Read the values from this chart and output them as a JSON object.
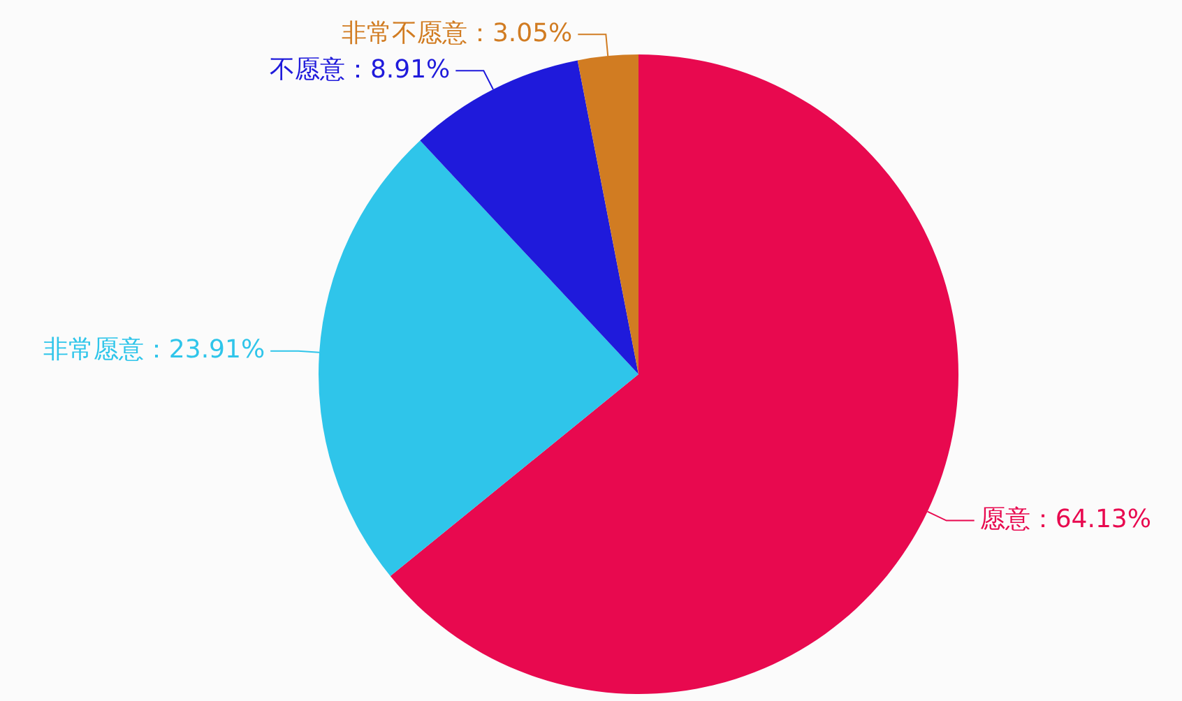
{
  "chart_data": {
    "type": "pie",
    "categories": [
      "愿意",
      "非常愿意",
      "不愿意",
      "非常不愿意"
    ],
    "values": [
      64.13,
      23.91,
      8.91,
      3.05
    ],
    "colors": [
      "#e8094f",
      "#2fc5ea",
      "#1f1adb",
      "#d17c22"
    ],
    "value_labels": [
      "64.13%",
      "23.91%",
      "8.91%",
      "3.05%"
    ],
    "legend": false
  }
}
